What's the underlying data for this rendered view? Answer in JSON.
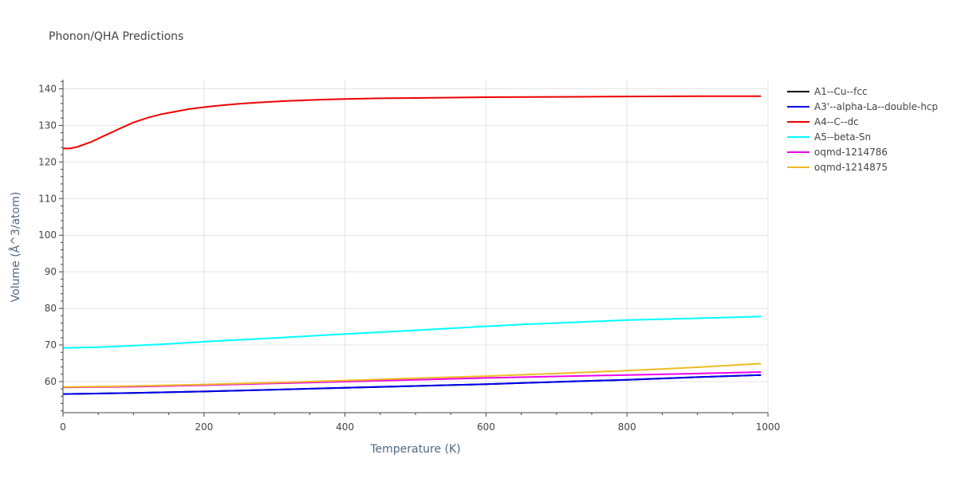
{
  "chart_data": {
    "type": "line",
    "title": "Phonon/QHA Predictions",
    "xlabel": "Temperature (K)",
    "ylabel": "Volume (Å^3/atom)",
    "xlim": [
      0,
      1000
    ],
    "ylim": [
      51.5,
      142.5
    ],
    "xticks": [
      0,
      200,
      400,
      600,
      800,
      1000
    ],
    "yticks": [
      60,
      70,
      80,
      90,
      100,
      110,
      120,
      130,
      140
    ],
    "grid": true,
    "legend_position": "right",
    "series": [
      {
        "name": "A1--Cu--fcc",
        "color": "#000000",
        "x": [
          0,
          100,
          200,
          300,
          400,
          500,
          600,
          700,
          800,
          900,
          990
        ],
        "y": [
          56.6,
          56.9,
          57.3,
          57.8,
          58.3,
          58.8,
          59.3,
          59.9,
          60.5,
          61.2,
          61.8
        ]
      },
      {
        "name": "A3'--alpha-La--double-hcp",
        "color": "#0000ee",
        "x": [
          0,
          100,
          200,
          300,
          400,
          500,
          600,
          700,
          800,
          900,
          990
        ],
        "y": [
          56.6,
          56.9,
          57.3,
          57.8,
          58.3,
          58.8,
          59.3,
          59.9,
          60.5,
          61.2,
          61.8
        ]
      },
      {
        "name": "A4--C--dc",
        "color": "#ee0000",
        "x": [
          0,
          10,
          20,
          40,
          60,
          80,
          100,
          120,
          140,
          160,
          180,
          200,
          220,
          250,
          280,
          320,
          360,
          400,
          450,
          500,
          600,
          700,
          800,
          900,
          990
        ],
        "y": [
          123.7,
          123.7,
          124.1,
          125.5,
          127.3,
          129.1,
          130.8,
          132.1,
          133.1,
          133.8,
          134.5,
          135.0,
          135.4,
          135.9,
          136.3,
          136.7,
          137.0,
          137.2,
          137.4,
          137.5,
          137.7,
          137.8,
          137.9,
          138.0,
          138.0
        ]
      },
      {
        "name": "A5--beta-Sn",
        "color": "#00ffff",
        "x": [
          0,
          50,
          100,
          150,
          200,
          300,
          400,
          500,
          600,
          650,
          700,
          800,
          900,
          990
        ],
        "y": [
          69.2,
          69.4,
          69.8,
          70.3,
          70.9,
          71.9,
          73.0,
          74.0,
          75.1,
          75.6,
          76.0,
          76.8,
          77.3,
          77.8
        ]
      },
      {
        "name": "oqmd-1214786",
        "color": "#ee00ee",
        "x": [
          0,
          100,
          200,
          300,
          400,
          500,
          600,
          700,
          800,
          900,
          990
        ],
        "y": [
          58.4,
          58.6,
          59.0,
          59.5,
          60.0,
          60.5,
          61.0,
          61.4,
          61.8,
          62.2,
          62.6
        ]
      },
      {
        "name": "oqmd-1214875",
        "color": "#eebb22",
        "x": [
          0,
          100,
          200,
          300,
          400,
          500,
          600,
          700,
          800,
          900,
          990
        ],
        "y": [
          58.5,
          58.8,
          59.2,
          59.7,
          60.3,
          60.9,
          61.5,
          62.2,
          63.0,
          63.9,
          64.9
        ]
      }
    ]
  }
}
